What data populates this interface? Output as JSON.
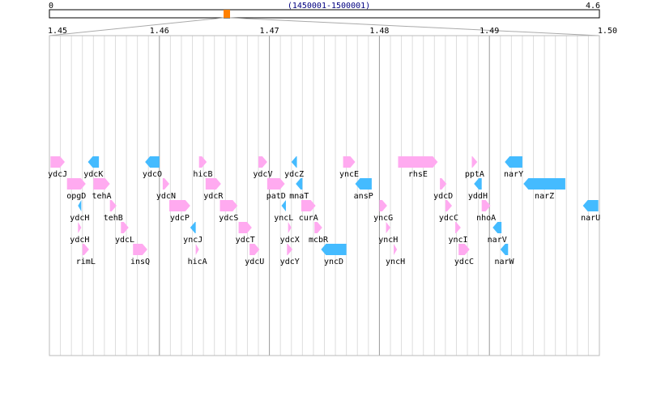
{
  "overview": {
    "start_label": "0",
    "end_label": "4.6",
    "region_label": "(1450001-1500001)",
    "region_start_mb": 0.0,
    "region_end_mb": 4.6,
    "selected_position_mb": 1.475,
    "marker_color": "#ff8000",
    "region_label_color": "#000080"
  },
  "axis": {
    "ticks": [
      {
        "label": "1.45",
        "value": 1.45
      },
      {
        "label": "1.46",
        "value": 1.46
      },
      {
        "label": "1.47",
        "value": 1.47
      },
      {
        "label": "1.48",
        "value": 1.48
      },
      {
        "label": "1.49",
        "value": 1.49
      },
      {
        "label": "1.50",
        "value": 1.5
      }
    ],
    "range": [
      1.45,
      1.5
    ],
    "minor_ticks_per_major": 10
  },
  "colors": {
    "forward": "#ffaaf0",
    "reverse": "#44bbff",
    "grid_major": "#999999",
    "grid_minor": "#dddddd",
    "frame": "#bbbbbb"
  },
  "genes": [
    {
      "name": "ydcJ",
      "start": 1.4501,
      "end": 1.4514,
      "strand": "+",
      "lane": 0
    },
    {
      "name": "opgD",
      "start": 1.4516,
      "end": 1.4533,
      "strand": "+",
      "lane": 1
    },
    {
      "name": "ydcH",
      "start": 1.4526,
      "end": 1.4529,
      "strand": "-",
      "lane": 2
    },
    {
      "name": "ydcH",
      "start": 1.4526,
      "end": 1.4529,
      "strand": "+",
      "lane": 3
    },
    {
      "name": "rimL",
      "start": 1.453,
      "end": 1.4536,
      "strand": "+",
      "lane": 4
    },
    {
      "name": "ydcK",
      "start": 1.4535,
      "end": 1.4545,
      "strand": "-",
      "lane": 0
    },
    {
      "name": "tehA",
      "start": 1.454,
      "end": 1.4555,
      "strand": "+",
      "lane": 1
    },
    {
      "name": "tehB",
      "start": 1.4555,
      "end": 1.4561,
      "strand": "+",
      "lane": 2
    },
    {
      "name": "ydcL",
      "start": 1.4565,
      "end": 1.4572,
      "strand": "+",
      "lane": 3
    },
    {
      "name": "insQ",
      "start": 1.4576,
      "end": 1.4589,
      "strand": "+",
      "lane": 4
    },
    {
      "name": "ydcO",
      "start": 1.4587,
      "end": 1.46,
      "strand": "-",
      "lane": 0
    },
    {
      "name": "ydcN",
      "start": 1.4603,
      "end": 1.4609,
      "strand": "+",
      "lane": 1
    },
    {
      "name": "ydcP",
      "start": 1.4609,
      "end": 1.4628,
      "strand": "+",
      "lane": 2
    },
    {
      "name": "yncJ",
      "start": 1.4628,
      "end": 1.4633,
      "strand": "-",
      "lane": 3
    },
    {
      "name": "hicA",
      "start": 1.4633,
      "end": 1.4636,
      "strand": "+",
      "lane": 4
    },
    {
      "name": "hicB",
      "start": 1.4636,
      "end": 1.4643,
      "strand": "+",
      "lane": 0
    },
    {
      "name": "ydcR",
      "start": 1.4642,
      "end": 1.4656,
      "strand": "+",
      "lane": 1
    },
    {
      "name": "ydcS",
      "start": 1.4655,
      "end": 1.4671,
      "strand": "+",
      "lane": 2
    },
    {
      "name": "ydcT",
      "start": 1.4672,
      "end": 1.4684,
      "strand": "+",
      "lane": 3
    },
    {
      "name": "ydcU",
      "start": 1.4682,
      "end": 1.4691,
      "strand": "+",
      "lane": 4
    },
    {
      "name": "ydcV",
      "start": 1.469,
      "end": 1.4698,
      "strand": "+",
      "lane": 0
    },
    {
      "name": "patD",
      "start": 1.4698,
      "end": 1.4714,
      "strand": "+",
      "lane": 1
    },
    {
      "name": "yncL",
      "start": 1.4711,
      "end": 1.4715,
      "strand": "-",
      "lane": 2
    },
    {
      "name": "ydcX",
      "start": 1.4717,
      "end": 1.472,
      "strand": "+",
      "lane": 3
    },
    {
      "name": "ydcY",
      "start": 1.4716,
      "end": 1.4721,
      "strand": "+",
      "lane": 4
    },
    {
      "name": "ydcZ",
      "start": 1.472,
      "end": 1.4725,
      "strand": "-",
      "lane": 0
    },
    {
      "name": "mnaT",
      "start": 1.4724,
      "end": 1.473,
      "strand": "-",
      "lane": 1
    },
    {
      "name": "curA",
      "start": 1.4729,
      "end": 1.4742,
      "strand": "+",
      "lane": 2
    },
    {
      "name": "mcbR",
      "start": 1.4741,
      "end": 1.4748,
      "strand": "+",
      "lane": 3
    },
    {
      "name": "yncD",
      "start": 1.4747,
      "end": 1.477,
      "strand": "-",
      "lane": 4
    },
    {
      "name": "yncE",
      "start": 1.4767,
      "end": 1.4778,
      "strand": "+",
      "lane": 0
    },
    {
      "name": "ansP",
      "start": 1.4778,
      "end": 1.4793,
      "strand": "-",
      "lane": 1
    },
    {
      "name": "yncG",
      "start": 1.48,
      "end": 1.4807,
      "strand": "+",
      "lane": 2
    },
    {
      "name": "yncH",
      "start": 1.4806,
      "end": 1.481,
      "strand": "+",
      "lane": 3
    },
    {
      "name": "yncH",
      "start": 1.4813,
      "end": 1.4816,
      "strand": "+",
      "lane": 4
    },
    {
      "name": "rhsE",
      "start": 1.4817,
      "end": 1.4853,
      "strand": "+",
      "lane": 0
    },
    {
      "name": "ydcD",
      "start": 1.4855,
      "end": 1.4861,
      "strand": "+",
      "lane": 1
    },
    {
      "name": "ydcC",
      "start": 1.486,
      "end": 1.4866,
      "strand": "+",
      "lane": 2
    },
    {
      "name": "yncI",
      "start": 1.4869,
      "end": 1.4874,
      "strand": "+",
      "lane": 3
    },
    {
      "name": "ydcC",
      "start": 1.4872,
      "end": 1.4882,
      "strand": "+",
      "lane": 4
    },
    {
      "name": "pptA",
      "start": 1.4884,
      "end": 1.4889,
      "strand": "+",
      "lane": 0
    },
    {
      "name": "yddH",
      "start": 1.4886,
      "end": 1.4893,
      "strand": "-",
      "lane": 1
    },
    {
      "name": "nhoA",
      "start": 1.4893,
      "end": 1.4901,
      "strand": "+",
      "lane": 2
    },
    {
      "name": "narV",
      "start": 1.4903,
      "end": 1.4911,
      "strand": "-",
      "lane": 3
    },
    {
      "name": "narW",
      "start": 1.491,
      "end": 1.4917,
      "strand": "-",
      "lane": 4
    },
    {
      "name": "narY",
      "start": 1.4914,
      "end": 1.493,
      "strand": "-",
      "lane": 0
    },
    {
      "name": "narZ",
      "start": 1.4931,
      "end": 1.4969,
      "strand": "-",
      "lane": 1
    },
    {
      "name": "narU",
      "start": 1.4985,
      "end": 1.4999,
      "strand": "-",
      "lane": 2
    }
  ]
}
